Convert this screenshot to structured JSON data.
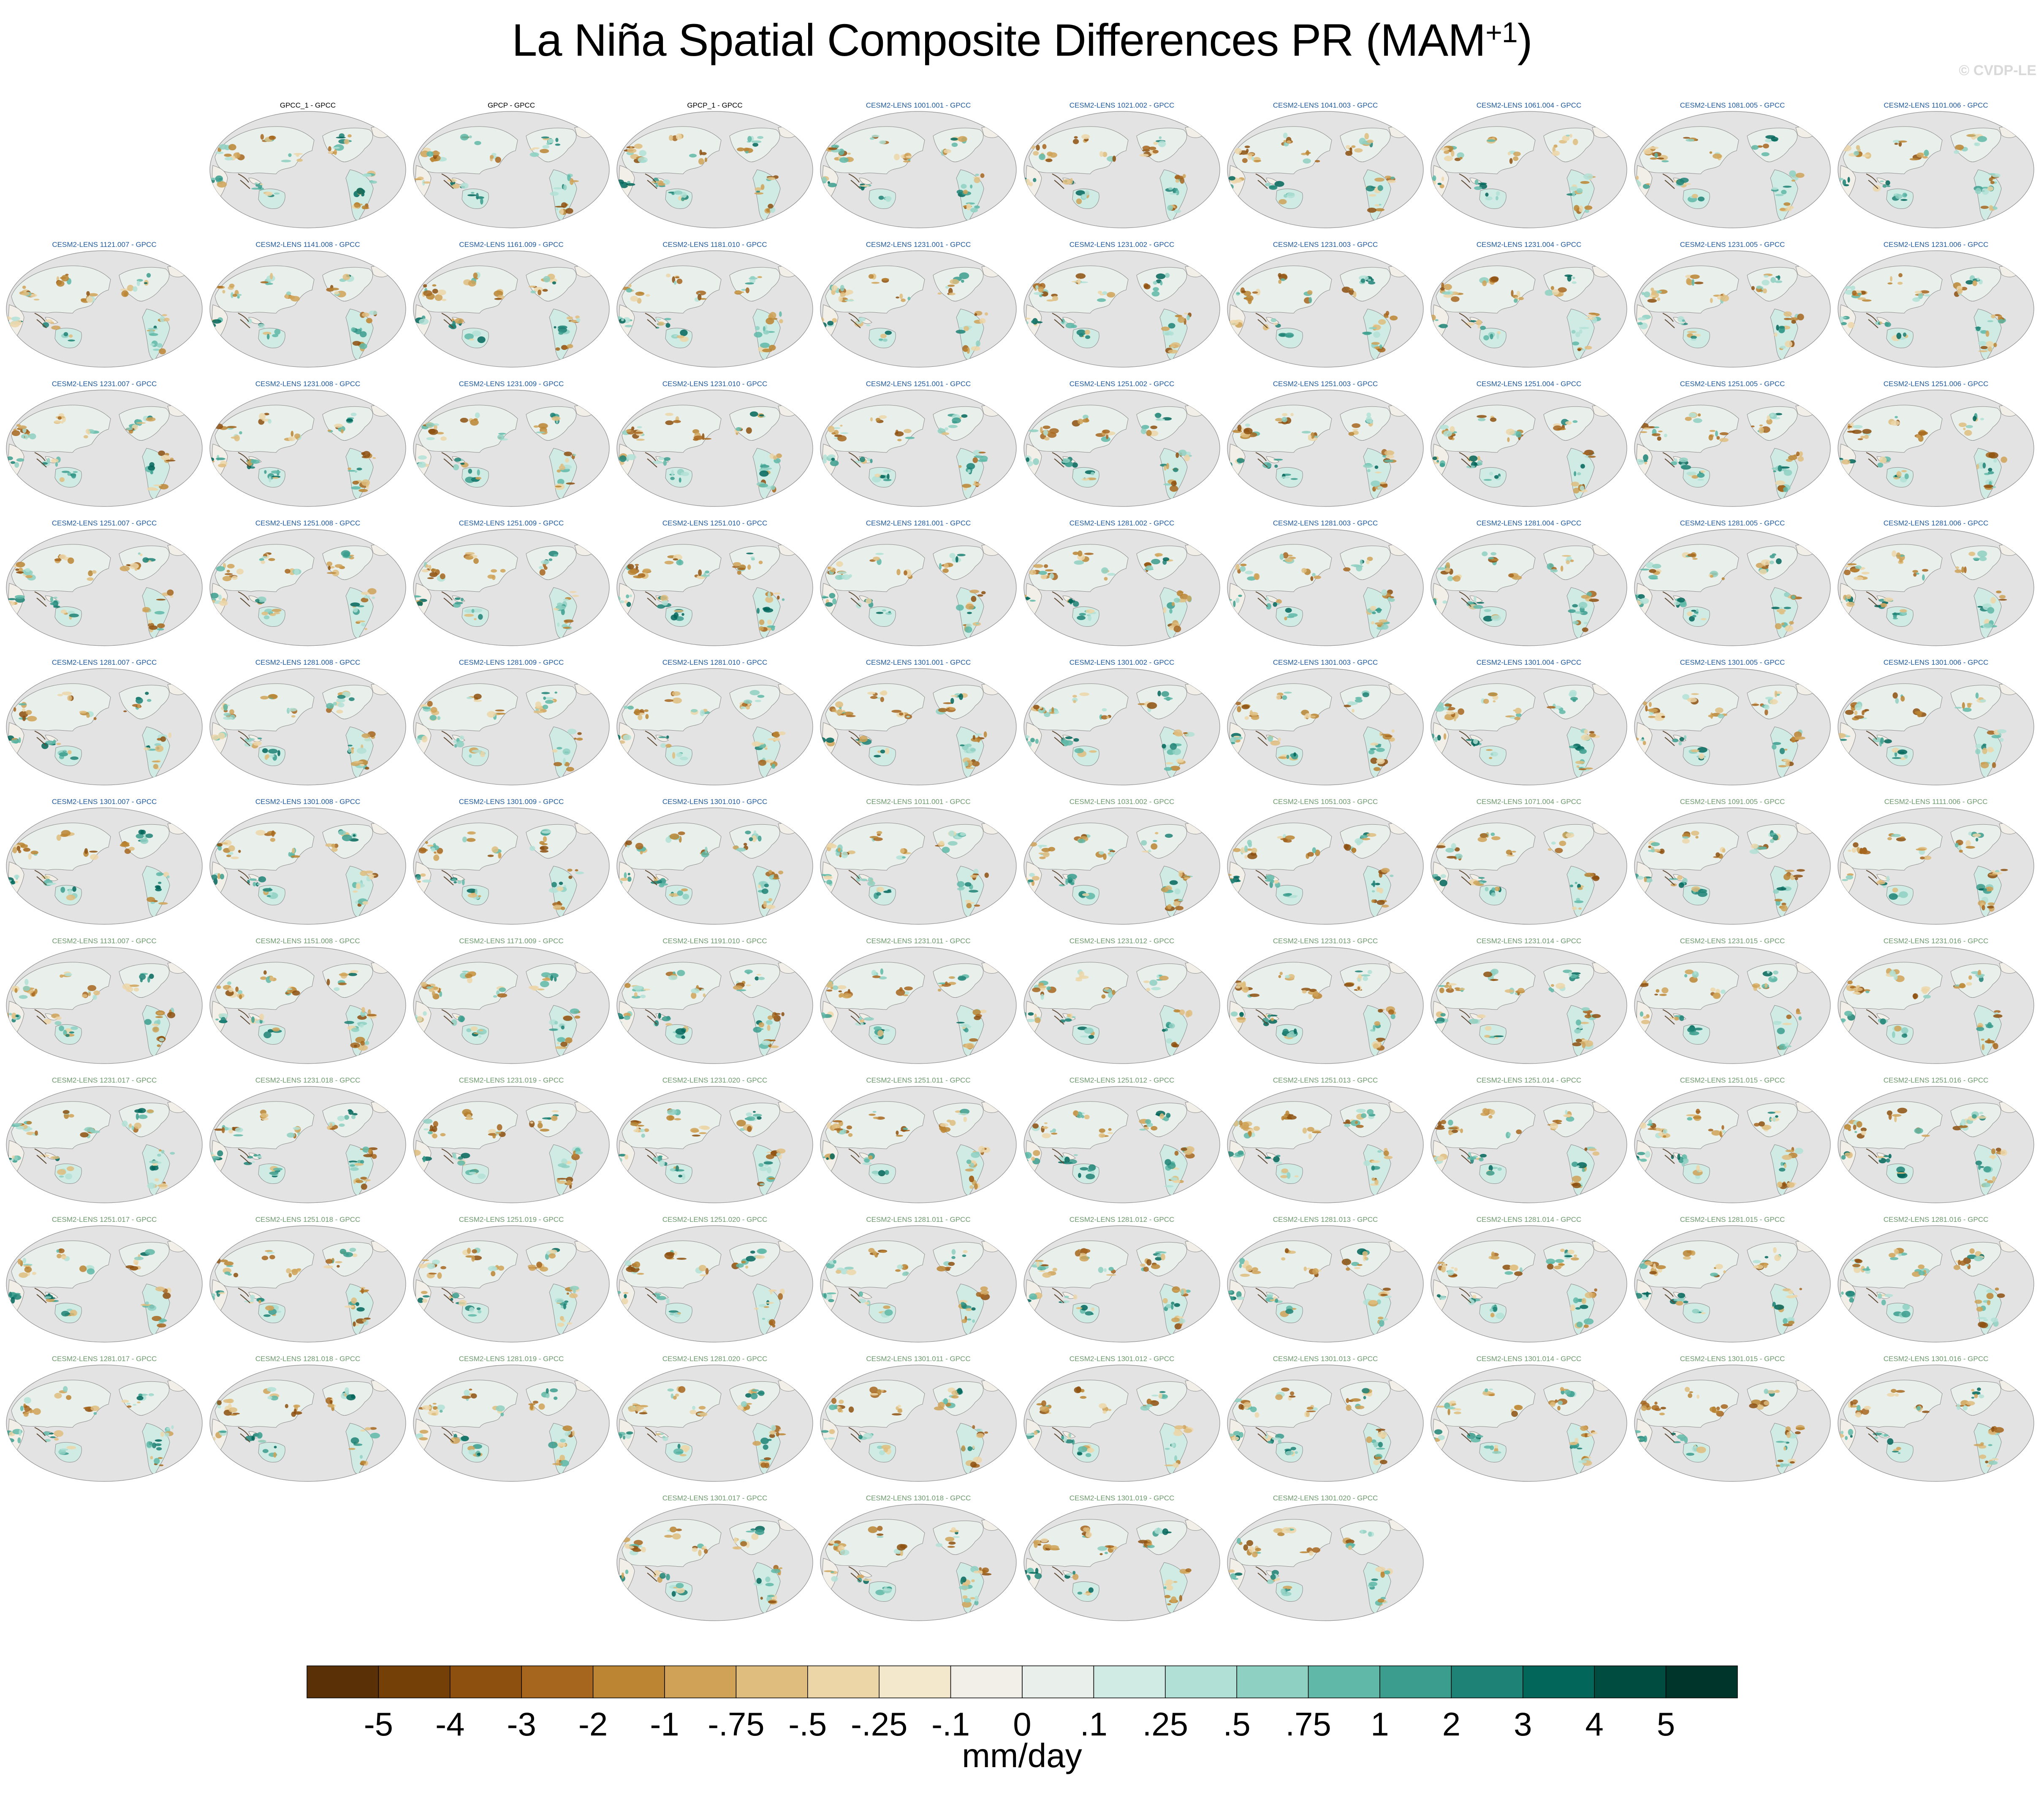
{
  "title": "La Niña Spatial Composite Differences PR (MAM",
  "title_superscript": "+1",
  "title_close": ")",
  "watermark": "© CVDP-LE",
  "units": "mm/day",
  "colors": {
    "land_anomaly_dry": "#c99b52",
    "land_anomaly_wet": "#3aa597",
    "ocean_background": "#e3e3e3",
    "coastline": "#8a8a8a",
    "label_observed": "#000000",
    "label_member_set1": "#1f5a9e",
    "label_member_set2": "#6c9a6c"
  },
  "chart_data": {
    "type": "heatmap",
    "variable": "PR",
    "season": "MAM+1",
    "colorbar": {
      "tick_labels": [
        "-5",
        "-4",
        "-3",
        "-2",
        "-1",
        "-.75",
        "-.5",
        "-.25",
        "-.1",
        "0",
        ".1",
        ".25",
        ".5",
        ".75",
        "1",
        "2",
        "3",
        "4",
        "5"
      ],
      "levels": [
        -5,
        -4,
        -3,
        -2,
        -1,
        -0.75,
        -0.5,
        -0.25,
        -0.1,
        0,
        0.1,
        0.25,
        0.5,
        0.75,
        1,
        2,
        3,
        4,
        5
      ],
      "colors": [
        "#5a3006",
        "#744008",
        "#8d500f",
        "#a6661d",
        "#bb8533",
        "#cfa257",
        "#dfbd7e",
        "#ecd6a8",
        "#f4e8cc",
        "#f2efe8",
        "#e9efeb",
        "#d0ebe4",
        "#b1e0d6",
        "#8ed0c2",
        "#5fb8a8",
        "#3b9d8e",
        "#1e8276",
        "#02665a",
        "#004c40",
        "#00352b"
      ]
    },
    "panels": [
      {
        "label": "GPCC_1 - GPCC",
        "group": "obs"
      },
      {
        "label": "GPCP - GPCC",
        "group": "obs"
      },
      {
        "label": "GPCP_1 - GPCC",
        "group": "obs"
      },
      {
        "label": "CESM2-LENS 1001.001 - GPCC",
        "group": "a"
      },
      {
        "label": "CESM2-LENS 1021.002 - GPCC",
        "group": "a"
      },
      {
        "label": "CESM2-LENS 1041.003 - GPCC",
        "group": "a"
      },
      {
        "label": "CESM2-LENS 1061.004 - GPCC",
        "group": "a"
      },
      {
        "label": "CESM2-LENS 1081.005 - GPCC",
        "group": "a"
      },
      {
        "label": "CESM2-LENS 1101.006 - GPCC",
        "group": "a"
      },
      {
        "label": "CESM2-LENS 1121.007 - GPCC",
        "group": "a"
      },
      {
        "label": "CESM2-LENS 1141.008 - GPCC",
        "group": "a"
      },
      {
        "label": "CESM2-LENS 1161.009 - GPCC",
        "group": "a"
      },
      {
        "label": "CESM2-LENS 1181.010 - GPCC",
        "group": "a"
      },
      {
        "label": "CESM2-LENS 1231.001 - GPCC",
        "group": "a"
      },
      {
        "label": "CESM2-LENS 1231.002 - GPCC",
        "group": "a"
      },
      {
        "label": "CESM2-LENS 1231.003 - GPCC",
        "group": "a"
      },
      {
        "label": "CESM2-LENS 1231.004 - GPCC",
        "group": "a"
      },
      {
        "label": "CESM2-LENS 1231.005 - GPCC",
        "group": "a"
      },
      {
        "label": "CESM2-LENS 1231.006 - GPCC",
        "group": "a"
      },
      {
        "label": "CESM2-LENS 1231.007 - GPCC",
        "group": "a"
      },
      {
        "label": "CESM2-LENS 1231.008 - GPCC",
        "group": "a"
      },
      {
        "label": "CESM2-LENS 1231.009 - GPCC",
        "group": "a"
      },
      {
        "label": "CESM2-LENS 1231.010 - GPCC",
        "group": "a"
      },
      {
        "label": "CESM2-LENS 1251.001 - GPCC",
        "group": "a"
      },
      {
        "label": "CESM2-LENS 1251.002 - GPCC",
        "group": "a"
      },
      {
        "label": "CESM2-LENS 1251.003 - GPCC",
        "group": "a"
      },
      {
        "label": "CESM2-LENS 1251.004 - GPCC",
        "group": "a"
      },
      {
        "label": "CESM2-LENS 1251.005 - GPCC",
        "group": "a"
      },
      {
        "label": "CESM2-LENS 1251.006 - GPCC",
        "group": "a"
      },
      {
        "label": "CESM2-LENS 1251.007 - GPCC",
        "group": "a"
      },
      {
        "label": "CESM2-LENS 1251.008 - GPCC",
        "group": "a"
      },
      {
        "label": "CESM2-LENS 1251.009 - GPCC",
        "group": "a"
      },
      {
        "label": "CESM2-LENS 1251.010 - GPCC",
        "group": "a"
      },
      {
        "label": "CESM2-LENS 1281.001 - GPCC",
        "group": "a"
      },
      {
        "label": "CESM2-LENS 1281.002 - GPCC",
        "group": "a"
      },
      {
        "label": "CESM2-LENS 1281.003 - GPCC",
        "group": "a"
      },
      {
        "label": "CESM2-LENS 1281.004 - GPCC",
        "group": "a"
      },
      {
        "label": "CESM2-LENS 1281.005 - GPCC",
        "group": "a"
      },
      {
        "label": "CESM2-LENS 1281.006 - GPCC",
        "group": "a"
      },
      {
        "label": "CESM2-LENS 1281.007 - GPCC",
        "group": "a"
      },
      {
        "label": "CESM2-LENS 1281.008 - GPCC",
        "group": "a"
      },
      {
        "label": "CESM2-LENS 1281.009 - GPCC",
        "group": "a"
      },
      {
        "label": "CESM2-LENS 1281.010 - GPCC",
        "group": "a"
      },
      {
        "label": "CESM2-LENS 1301.001 - GPCC",
        "group": "a"
      },
      {
        "label": "CESM2-LENS 1301.002 - GPCC",
        "group": "a"
      },
      {
        "label": "CESM2-LENS 1301.003 - GPCC",
        "group": "a"
      },
      {
        "label": "CESM2-LENS 1301.004 - GPCC",
        "group": "a"
      },
      {
        "label": "CESM2-LENS 1301.005 - GPCC",
        "group": "a"
      },
      {
        "label": "CESM2-LENS 1301.006 - GPCC",
        "group": "a"
      },
      {
        "label": "CESM2-LENS 1301.007 - GPCC",
        "group": "a"
      },
      {
        "label": "CESM2-LENS 1301.008 - GPCC",
        "group": "a"
      },
      {
        "label": "CESM2-LENS 1301.009 - GPCC",
        "group": "a"
      },
      {
        "label": "CESM2-LENS 1301.010 - GPCC",
        "group": "a"
      },
      {
        "label": "CESM2-LENS 1011.001 - GPCC",
        "group": "b"
      },
      {
        "label": "CESM2-LENS 1031.002 - GPCC",
        "group": "b"
      },
      {
        "label": "CESM2-LENS 1051.003 - GPCC",
        "group": "b"
      },
      {
        "label": "CESM2-LENS 1071.004 - GPCC",
        "group": "b"
      },
      {
        "label": "CESM2-LENS 1091.005 - GPCC",
        "group": "b"
      },
      {
        "label": "CESM2-LENS 1111.006 - GPCC",
        "group": "b"
      },
      {
        "label": "CESM2-LENS 1131.007 - GPCC",
        "group": "b"
      },
      {
        "label": "CESM2-LENS 1151.008 - GPCC",
        "group": "b"
      },
      {
        "label": "CESM2-LENS 1171.009 - GPCC",
        "group": "b"
      },
      {
        "label": "CESM2-LENS 1191.010 - GPCC",
        "group": "b"
      },
      {
        "label": "CESM2-LENS 1231.011 - GPCC",
        "group": "b"
      },
      {
        "label": "CESM2-LENS 1231.012 - GPCC",
        "group": "b"
      },
      {
        "label": "CESM2-LENS 1231.013 - GPCC",
        "group": "b"
      },
      {
        "label": "CESM2-LENS 1231.014 - GPCC",
        "group": "b"
      },
      {
        "label": "CESM2-LENS 1231.015 - GPCC",
        "group": "b"
      },
      {
        "label": "CESM2-LENS 1231.016 - GPCC",
        "group": "b"
      },
      {
        "label": "CESM2-LENS 1231.017 - GPCC",
        "group": "b"
      },
      {
        "label": "CESM2-LENS 1231.018 - GPCC",
        "group": "b"
      },
      {
        "label": "CESM2-LENS 1231.019 - GPCC",
        "group": "b"
      },
      {
        "label": "CESM2-LENS 1231.020 - GPCC",
        "group": "b"
      },
      {
        "label": "CESM2-LENS 1251.011 - GPCC",
        "group": "b"
      },
      {
        "label": "CESM2-LENS 1251.012 - GPCC",
        "group": "b"
      },
      {
        "label": "CESM2-LENS 1251.013 - GPCC",
        "group": "b"
      },
      {
        "label": "CESM2-LENS 1251.014 - GPCC",
        "group": "b"
      },
      {
        "label": "CESM2-LENS 1251.015 - GPCC",
        "group": "b"
      },
      {
        "label": "CESM2-LENS 1251.016 - GPCC",
        "group": "b"
      },
      {
        "label": "CESM2-LENS 1251.017 - GPCC",
        "group": "b"
      },
      {
        "label": "CESM2-LENS 1251.018 - GPCC",
        "group": "b"
      },
      {
        "label": "CESM2-LENS 1251.019 - GPCC",
        "group": "b"
      },
      {
        "label": "CESM2-LENS 1251.020 - GPCC",
        "group": "b"
      },
      {
        "label": "CESM2-LENS 1281.011 - GPCC",
        "group": "b"
      },
      {
        "label": "CESM2-LENS 1281.012 - GPCC",
        "group": "b"
      },
      {
        "label": "CESM2-LENS 1281.013 - GPCC",
        "group": "b"
      },
      {
        "label": "CESM2-LENS 1281.014 - GPCC",
        "group": "b"
      },
      {
        "label": "CESM2-LENS 1281.015 - GPCC",
        "group": "b"
      },
      {
        "label": "CESM2-LENS 1281.016 - GPCC",
        "group": "b"
      },
      {
        "label": "CESM2-LENS 1281.017 - GPCC",
        "group": "b"
      },
      {
        "label": "CESM2-LENS 1281.018 - GPCC",
        "group": "b"
      },
      {
        "label": "CESM2-LENS 1281.019 - GPCC",
        "group": "b"
      },
      {
        "label": "CESM2-LENS 1281.020 - GPCC",
        "group": "b"
      },
      {
        "label": "CESM2-LENS 1301.011 - GPCC",
        "group": "b"
      },
      {
        "label": "CESM2-LENS 1301.012 - GPCC",
        "group": "b"
      },
      {
        "label": "CESM2-LENS 1301.013 - GPCC",
        "group": "b"
      },
      {
        "label": "CESM2-LENS 1301.014 - GPCC",
        "group": "b"
      },
      {
        "label": "CESM2-LENS 1301.015 - GPCC",
        "group": "b"
      },
      {
        "label": "CESM2-LENS 1301.016 - GPCC",
        "group": "b"
      },
      {
        "label": "CESM2-LENS 1301.017 - GPCC",
        "group": "b"
      },
      {
        "label": "CESM2-LENS 1301.018 - GPCC",
        "group": "b"
      },
      {
        "label": "CESM2-LENS 1301.019 - GPCC",
        "group": "b"
      },
      {
        "label": "CESM2-LENS 1301.020 - GPCC",
        "group": "b"
      }
    ]
  }
}
